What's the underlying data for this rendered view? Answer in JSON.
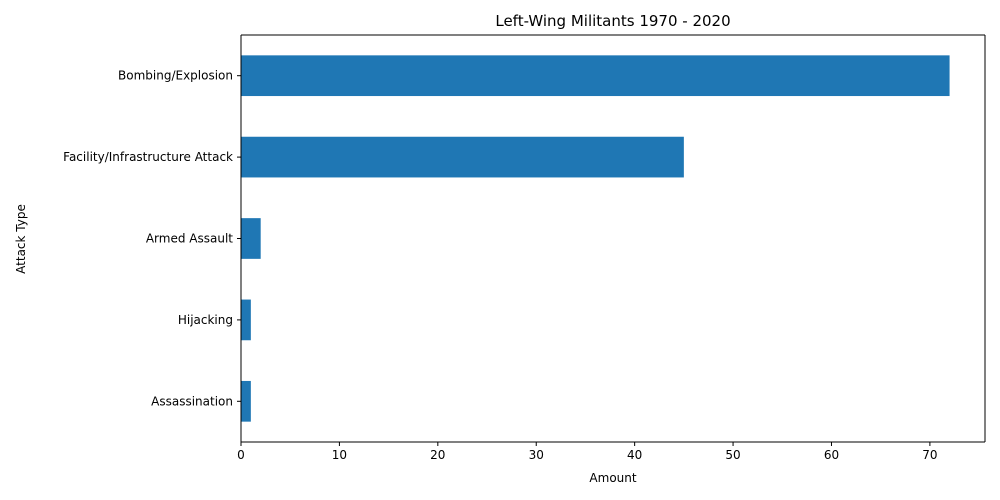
{
  "chart_data": {
    "type": "bar",
    "orientation": "horizontal",
    "title": "Left-Wing Militants 1970 - 2020",
    "xlabel": "Amount",
    "ylabel": "Attack Type",
    "categories": [
      "Bombing/Explosion",
      "Facility/Infrastructure Attack",
      "Armed Assault",
      "Hijacking",
      "Assassination"
    ],
    "values": [
      72,
      45,
      2,
      1,
      1
    ],
    "xlim": [
      0,
      75.6
    ],
    "xticks": [
      0,
      10,
      20,
      30,
      40,
      50,
      60,
      70
    ],
    "bar_color": "#1f77b4",
    "grid": false,
    "legend": "none"
  }
}
